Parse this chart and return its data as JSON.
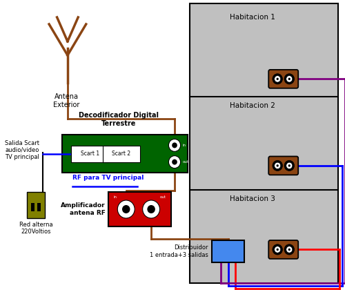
{
  "bg_color": "#ffffff",
  "brown": "#8B4513",
  "blue": "#0000ff",
  "red": "#ff0000",
  "purple": "#800080",
  "green_decoder": "#006400",
  "red_amp": "#cc0000",
  "blue_dist": "#4488ee",
  "olive_pwr": "#808000",
  "room_color": "#c0c0c0",
  "room_labels": [
    "Habitacion 1",
    "Habitacion 2",
    "Habitacion 3"
  ],
  "decoder_label": "Decodificador Digital\nTerrestre",
  "amp_label": "Amplificador\nantena RF",
  "dist_label": "Distribuidor\n1 entrada+3 salidas",
  "pwr_label": "Red alterna\n220Voltios",
  "rf_label": "RF para TV principal",
  "salida_label": "Salida Scart\naudio/video\nTV principal",
  "ant_label": "Antena\nExterior",
  "scart1_label": "Scart 1",
  "scart2_label": "Scart 2"
}
